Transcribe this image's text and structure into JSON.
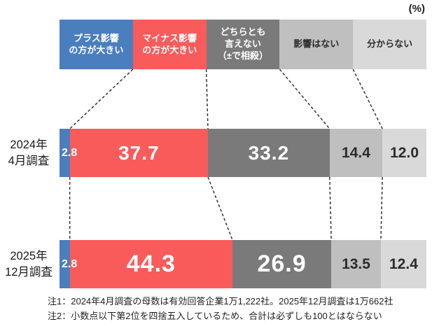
{
  "unit_label": "(%)",
  "chart_data": {
    "type": "bar",
    "stacked": true,
    "orientation": "horizontal",
    "xlim": [
      0,
      100
    ],
    "legend_position": "top",
    "categories": [
      {
        "label": "プラス影響\nの方が大きい",
        "color": "#4a7ebe",
        "text_color": "#ffffff"
      },
      {
        "label": "マイナス影響\nの方が大きい",
        "color": "#f95b5b",
        "text_color": "#ffffff"
      },
      {
        "label": "どちらとも\n言えない\n（±で相殺）",
        "color": "#7a7a7a",
        "text_color": "#ffffff"
      },
      {
        "label": "影響はない",
        "color": "#bfbfbf",
        "text_color": "#2b2b2b"
      },
      {
        "label": "分からない",
        "color": "#d9d9d9",
        "text_color": "#2b2b2b"
      }
    ],
    "rows": [
      {
        "label": "2024年\n4月調査",
        "values": [
          2.8,
          37.7,
          33.2,
          14.4,
          12.0
        ],
        "value_labels": [
          "2.8",
          "37.7",
          "33.2",
          "14.4",
          "12.0"
        ]
      },
      {
        "label": "2025年\n12月調査",
        "values": [
          2.8,
          44.3,
          26.9,
          13.5,
          12.4
        ],
        "value_labels": [
          "2.8",
          "44.3",
          "26.9",
          "13.5",
          "12.4"
        ]
      }
    ],
    "connector_style": {
      "color": "#333333",
      "dash": "4 3",
      "width": 1.5
    }
  },
  "footnotes": [
    "注1：2024年4月調査の母数は有効回答企業1万1,222社。2025年12月調査は1万662社",
    "注2：小数点以下第2位を四捨五入しているため、合計は必ずしも100とはならない"
  ]
}
